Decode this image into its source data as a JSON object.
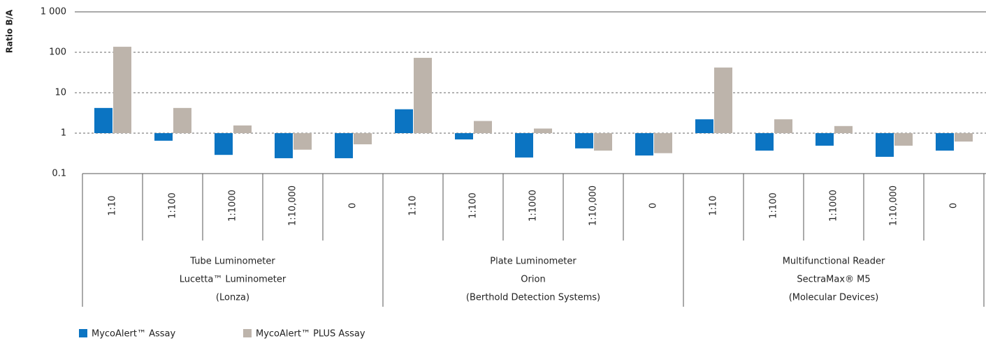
{
  "chart_data": {
    "type": "bar",
    "y_label": "Ratio B/A",
    "categories": [
      "1:10",
      "1:100",
      "1:1000",
      "1:10,000",
      "0",
      "1:10",
      "1:100",
      "1:1000",
      "1:10,000",
      "0",
      "1:10",
      "1:100",
      "1:1000",
      "1:10,000",
      "0"
    ],
    "groups": [
      {
        "lines": [
          "Tube Luminometer",
          "Lucetta™ Luminometer",
          "(Lonza)"
        ]
      },
      {
        "lines": [
          "Plate Luminometer",
          "Orion",
          "(Berthold Detection Systems)"
        ]
      },
      {
        "lines": [
          "Multifunctional Reader",
          "SectraMax® M5",
          "(Molecular Devices)"
        ]
      }
    ],
    "series": [
      {
        "name": "MycoAlert™ Assay",
        "color": "#0b74c2",
        "values": [
          4.2,
          0.65,
          0.29,
          0.24,
          0.24,
          3.9,
          0.7,
          0.25,
          0.42,
          0.28,
          2.2,
          0.37,
          0.49,
          0.26,
          0.37
        ]
      },
      {
        "name": "MycoAlert™ PLUS Assay",
        "color": "#bdb4ab",
        "values": [
          137,
          4.2,
          1.55,
          0.39,
          0.53,
          73,
          2.0,
          1.3,
          0.37,
          0.32,
          42,
          2.2,
          1.5,
          0.49,
          0.62
        ]
      }
    ],
    "log_scale": true,
    "ylim": [
      0.1,
      1000
    ],
    "yticks": [
      0.1,
      1,
      10,
      100,
      {
        "value": 1000,
        "label": "1 000"
      }
    ],
    "grid": true,
    "legend": "bottom-left"
  }
}
